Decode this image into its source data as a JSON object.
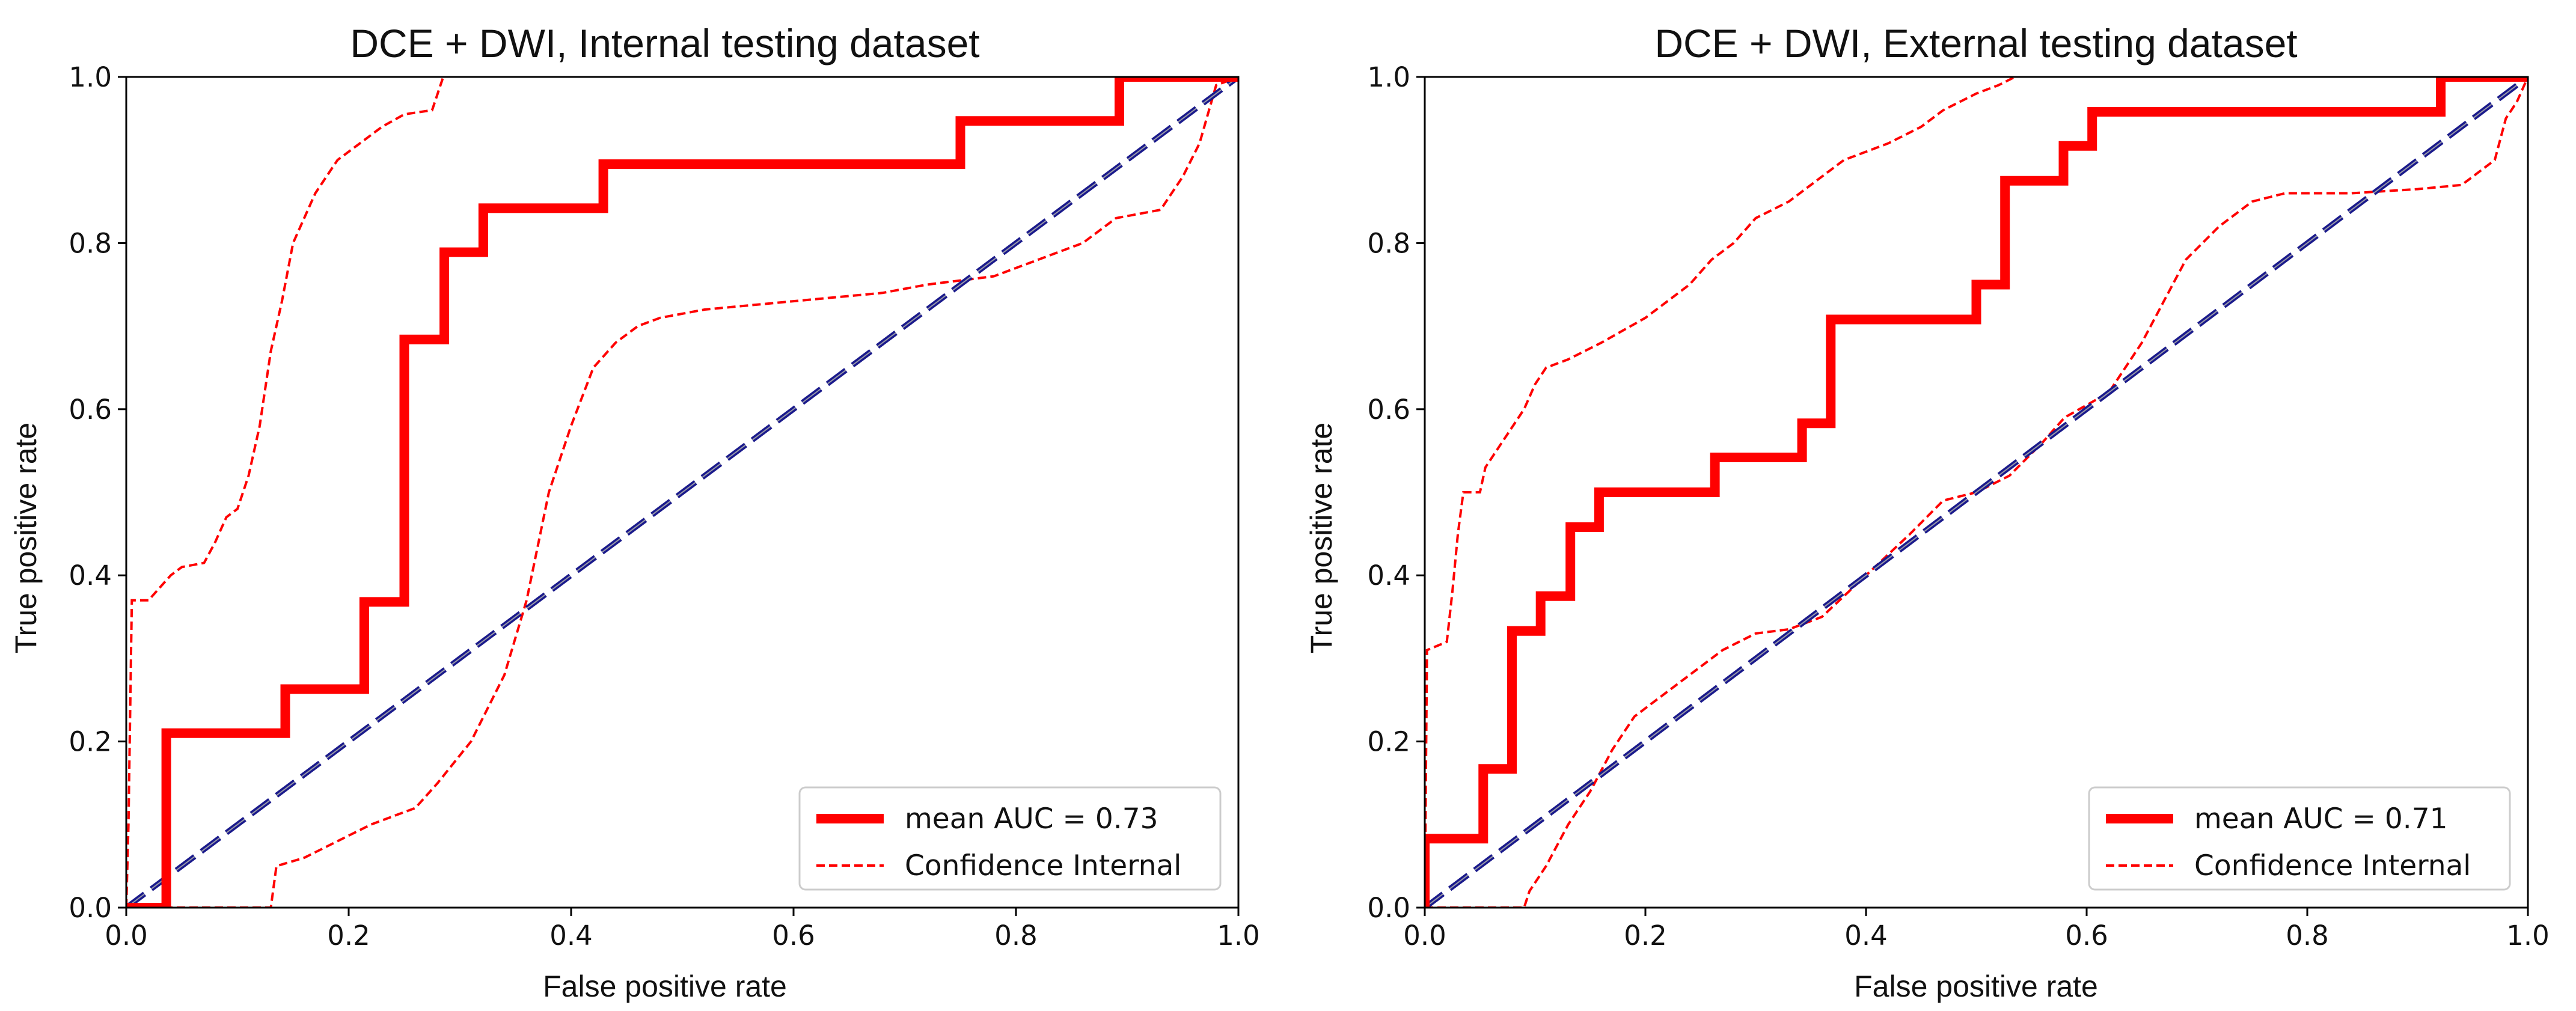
{
  "chart_data": [
    {
      "type": "line",
      "title": "DCE + DWI, Internal testing dataset",
      "xlabel": "False positive rate",
      "ylabel": "True positive rate",
      "xlim": [
        0,
        1
      ],
      "ylim": [
        0,
        1
      ],
      "xticks": [
        "0.0",
        "0.2",
        "0.4",
        "0.6",
        "0.8",
        "1.0"
      ],
      "yticks": [
        "0.0",
        "0.2",
        "0.4",
        "0.6",
        "0.8",
        "1.0"
      ],
      "grid": false,
      "legend_position": "lower-right",
      "series": [
        {
          "name": "mean AUC = 0.73",
          "style": "solid-thick",
          "color": "#ff0000",
          "points": [
            [
              0,
              0
            ],
            [
              0.036,
              0
            ],
            [
              0.036,
              0.21
            ],
            [
              0.143,
              0.21
            ],
            [
              0.143,
              0.263
            ],
            [
              0.214,
              0.263
            ],
            [
              0.214,
              0.368
            ],
            [
              0.25,
              0.368
            ],
            [
              0.25,
              0.684
            ],
            [
              0.286,
              0.684
            ],
            [
              0.286,
              0.789
            ],
            [
              0.321,
              0.789
            ],
            [
              0.321,
              0.842
            ],
            [
              0.429,
              0.842
            ],
            [
              0.429,
              0.895
            ],
            [
              0.75,
              0.895
            ],
            [
              0.75,
              0.947
            ],
            [
              0.893,
              0.947
            ],
            [
              0.893,
              1.0
            ],
            [
              1.0,
              1.0
            ]
          ]
        },
        {
          "name": "Confidence Internal",
          "style": "dashed",
          "color": "#ff0000",
          "points": [
            [
              0,
              0
            ],
            [
              0.002,
              0.1
            ],
            [
              0.005,
              0.37
            ],
            [
              0.02,
              0.37
            ],
            [
              0.04,
              0.4
            ],
            [
              0.05,
              0.41
            ],
            [
              0.07,
              0.415
            ],
            [
              0.08,
              0.44
            ],
            [
              0.09,
              0.47
            ],
            [
              0.1,
              0.48
            ],
            [
              0.11,
              0.52
            ],
            [
              0.12,
              0.58
            ],
            [
              0.13,
              0.67
            ],
            [
              0.14,
              0.73
            ],
            [
              0.15,
              0.8
            ],
            [
              0.16,
              0.83
            ],
            [
              0.17,
              0.86
            ],
            [
              0.18,
              0.88
            ],
            [
              0.19,
              0.9
            ],
            [
              0.21,
              0.92
            ],
            [
              0.23,
              0.94
            ],
            [
              0.25,
              0.955
            ],
            [
              0.275,
              0.96
            ],
            [
              0.285,
              1.0
            ]
          ]
        },
        {
          "name": "",
          "style": "dashed",
          "color": "#ff0000",
          "points": [
            [
              0,
              0
            ],
            [
              0.13,
              0
            ],
            [
              0.135,
              0.05
            ],
            [
              0.16,
              0.06
            ],
            [
              0.19,
              0.08
            ],
            [
              0.22,
              0.1
            ],
            [
              0.26,
              0.12
            ],
            [
              0.28,
              0.15
            ],
            [
              0.31,
              0.2
            ],
            [
              0.34,
              0.28
            ],
            [
              0.36,
              0.37
            ],
            [
              0.38,
              0.5
            ],
            [
              0.4,
              0.58
            ],
            [
              0.42,
              0.65
            ],
            [
              0.44,
              0.68
            ],
            [
              0.46,
              0.7
            ],
            [
              0.48,
              0.71
            ],
            [
              0.52,
              0.72
            ],
            [
              0.6,
              0.73
            ],
            [
              0.68,
              0.74
            ],
            [
              0.72,
              0.75
            ],
            [
              0.78,
              0.76
            ],
            [
              0.82,
              0.78
            ],
            [
              0.86,
              0.8
            ],
            [
              0.89,
              0.83
            ],
            [
              0.93,
              0.84
            ],
            [
              0.95,
              0.88
            ],
            [
              0.965,
              0.92
            ],
            [
              0.98,
              0.99
            ],
            [
              1.0,
              1.0
            ]
          ]
        },
        {
          "name": "",
          "style": "dashed-diagonal",
          "color": "#1a1a8c",
          "points": [
            [
              0,
              0
            ],
            [
              1,
              1
            ]
          ]
        }
      ]
    },
    {
      "type": "line",
      "title": "DCE + DWI, External testing dataset",
      "xlabel": "False positive rate",
      "ylabel": "True positive rate",
      "xlim": [
        0,
        1
      ],
      "ylim": [
        0,
        1
      ],
      "xticks": [
        "0.0",
        "0.2",
        "0.4",
        "0.6",
        "0.8",
        "1.0"
      ],
      "yticks": [
        "0.0",
        "0.2",
        "0.4",
        "0.6",
        "0.8",
        "1.0"
      ],
      "grid": false,
      "legend_position": "lower-right",
      "series": [
        {
          "name": "mean AUC = 0.71",
          "style": "solid-thick",
          "color": "#ff0000",
          "points": [
            [
              0,
              0
            ],
            [
              0,
              0.083
            ],
            [
              0.053,
              0.083
            ],
            [
              0.053,
              0.167
            ],
            [
              0.079,
              0.167
            ],
            [
              0.079,
              0.333
            ],
            [
              0.105,
              0.333
            ],
            [
              0.105,
              0.375
            ],
            [
              0.132,
              0.375
            ],
            [
              0.132,
              0.458
            ],
            [
              0.158,
              0.458
            ],
            [
              0.158,
              0.5
            ],
            [
              0.263,
              0.5
            ],
            [
              0.263,
              0.542
            ],
            [
              0.342,
              0.542
            ],
            [
              0.342,
              0.583
            ],
            [
              0.368,
              0.583
            ],
            [
              0.368,
              0.708
            ],
            [
              0.5,
              0.708
            ],
            [
              0.5,
              0.75
            ],
            [
              0.526,
              0.75
            ],
            [
              0.526,
              0.875
            ],
            [
              0.579,
              0.875
            ],
            [
              0.579,
              0.917
            ],
            [
              0.605,
              0.917
            ],
            [
              0.605,
              0.958
            ],
            [
              0.921,
              0.958
            ],
            [
              0.921,
              1.0
            ],
            [
              1.0,
              1.0
            ]
          ]
        },
        {
          "name": "Confidence Internal",
          "style": "dashed",
          "color": "#ff0000",
          "points": [
            [
              0,
              0
            ],
            [
              0.002,
              0.31
            ],
            [
              0.02,
              0.32
            ],
            [
              0.025,
              0.38
            ],
            [
              0.03,
              0.45
            ],
            [
              0.035,
              0.5
            ],
            [
              0.05,
              0.5
            ],
            [
              0.055,
              0.53
            ],
            [
              0.07,
              0.56
            ],
            [
              0.09,
              0.6
            ],
            [
              0.1,
              0.63
            ],
            [
              0.11,
              0.65
            ],
            [
              0.13,
              0.66
            ],
            [
              0.16,
              0.68
            ],
            [
              0.2,
              0.71
            ],
            [
              0.24,
              0.75
            ],
            [
              0.26,
              0.78
            ],
            [
              0.28,
              0.8
            ],
            [
              0.3,
              0.83
            ],
            [
              0.33,
              0.85
            ],
            [
              0.36,
              0.88
            ],
            [
              0.38,
              0.9
            ],
            [
              0.42,
              0.92
            ],
            [
              0.45,
              0.94
            ],
            [
              0.47,
              0.96
            ],
            [
              0.5,
              0.98
            ],
            [
              0.52,
              0.99
            ],
            [
              0.535,
              1.0
            ]
          ]
        },
        {
          "name": "",
          "style": "dashed",
          "color": "#ff0000",
          "points": [
            [
              0,
              0
            ],
            [
              0.09,
              0
            ],
            [
              0.095,
              0.02
            ],
            [
              0.11,
              0.05
            ],
            [
              0.13,
              0.1
            ],
            [
              0.15,
              0.14
            ],
            [
              0.17,
              0.19
            ],
            [
              0.19,
              0.23
            ],
            [
              0.21,
              0.25
            ],
            [
              0.25,
              0.29
            ],
            [
              0.27,
              0.31
            ],
            [
              0.3,
              0.33
            ],
            [
              0.33,
              0.335
            ],
            [
              0.36,
              0.35
            ],
            [
              0.4,
              0.4
            ],
            [
              0.44,
              0.45
            ],
            [
              0.47,
              0.49
            ],
            [
              0.5,
              0.5
            ],
            [
              0.53,
              0.52
            ],
            [
              0.56,
              0.56
            ],
            [
              0.58,
              0.59
            ],
            [
              0.62,
              0.62
            ],
            [
              0.65,
              0.68
            ],
            [
              0.67,
              0.73
            ],
            [
              0.69,
              0.78
            ],
            [
              0.72,
              0.82
            ],
            [
              0.75,
              0.85
            ],
            [
              0.78,
              0.86
            ],
            [
              0.84,
              0.86
            ],
            [
              0.9,
              0.865
            ],
            [
              0.94,
              0.87
            ],
            [
              0.97,
              0.9
            ],
            [
              0.98,
              0.95
            ],
            [
              0.99,
              0.97
            ],
            [
              1.0,
              1.0
            ]
          ]
        },
        {
          "name": "",
          "style": "dashed-diagonal",
          "color": "#1a1a8c",
          "points": [
            [
              0,
              0
            ],
            [
              1,
              1
            ]
          ]
        }
      ]
    }
  ]
}
